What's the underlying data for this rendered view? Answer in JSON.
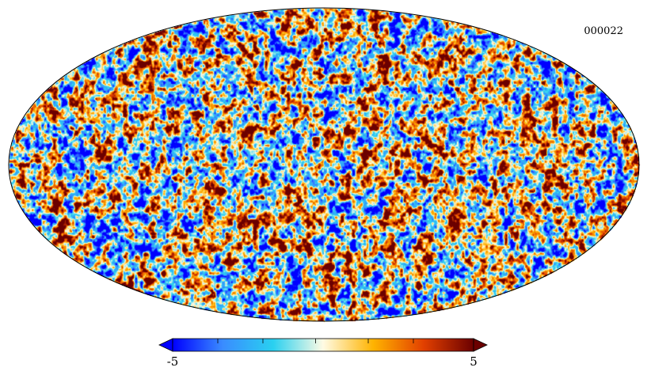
{
  "map": {
    "id_label": "000022",
    "projection": "mollweide",
    "colormap": "planck",
    "colors": [
      "#0000ff",
      "#3a8cff",
      "#29d0f0",
      "#fffbe4",
      "#ffb300",
      "#e24000",
      "#6b0000"
    ]
  },
  "colorbar": {
    "min": -5,
    "max": 5,
    "min_label": "-5",
    "max_label": "5",
    "tick_values": [
      -5,
      -3.5,
      -2,
      -0.25,
      1.5,
      3,
      5
    ],
    "extend": "both"
  }
}
